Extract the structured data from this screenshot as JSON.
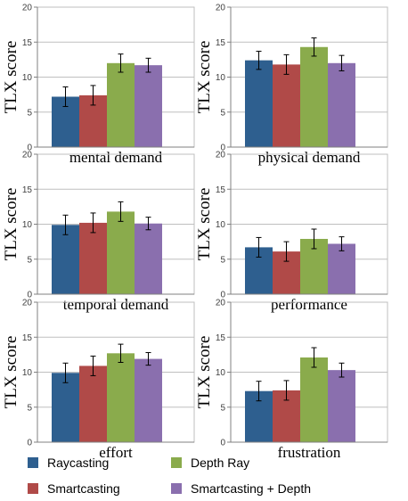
{
  "chart_data": {
    "type": "bar",
    "ylabel": "TLX score",
    "ylim": [
      0,
      20
    ],
    "yticks": [
      "0",
      "5",
      "10",
      "15",
      "20"
    ],
    "grid": true,
    "error_bars": true,
    "legend": {
      "placement": "bottom",
      "items": [
        {
          "name": "Raycasting",
          "color": "#2e5f8f"
        },
        {
          "name": "Smartcasting",
          "color": "#b04a48"
        },
        {
          "name": "Depth Ray",
          "color": "#8aab4c"
        },
        {
          "name": "Smartcasting + Depth",
          "color": "#8a6fae"
        }
      ]
    },
    "panels": [
      {
        "title": "mental demand",
        "values": [
          7.2,
          7.4,
          12.0,
          11.7
        ],
        "errors": [
          1.4,
          1.4,
          1.3,
          1.0
        ]
      },
      {
        "title": "physical demand",
        "values": [
          12.4,
          11.8,
          14.3,
          12.0
        ],
        "errors": [
          1.3,
          1.4,
          1.3,
          1.1
        ]
      },
      {
        "title": "temporal demand",
        "values": [
          9.9,
          10.2,
          11.8,
          10.1
        ],
        "errors": [
          1.4,
          1.4,
          1.4,
          0.9
        ]
      },
      {
        "title": "performance",
        "values": [
          6.7,
          6.1,
          7.9,
          7.2
        ],
        "errors": [
          1.4,
          1.4,
          1.4,
          1.0
        ]
      },
      {
        "title": "effort",
        "values": [
          9.9,
          10.9,
          12.7,
          11.9
        ],
        "errors": [
          1.4,
          1.4,
          1.3,
          0.9
        ]
      },
      {
        "title": "frustration",
        "values": [
          7.3,
          7.4,
          12.1,
          10.3
        ],
        "errors": [
          1.4,
          1.4,
          1.4,
          1.0
        ]
      }
    ]
  }
}
